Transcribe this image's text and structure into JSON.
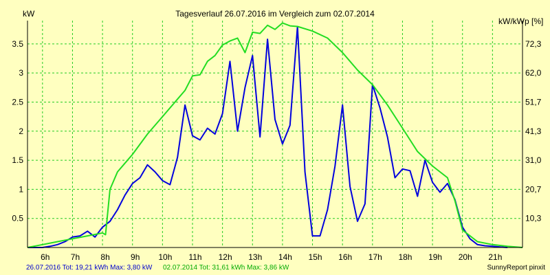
{
  "chart_data": {
    "type": "line",
    "title": "Tagesverlauf 26.07.2016 im Vergleich zum 02.07.2014",
    "left_axis_label": "kW",
    "right_axis_label": "kW/kWp [%]",
    "x_ticks": [
      "6h",
      "7h",
      "8h",
      "9h",
      "10h",
      "11h",
      "12h",
      "13h",
      "14h",
      "15h",
      "16h",
      "17h",
      "18h",
      "19h",
      "20h",
      "21h"
    ],
    "xlim": [
      5.5,
      22.0
    ],
    "ylim": [
      0,
      3.9
    ],
    "y_ticks": [
      0.5,
      1,
      1.5,
      2,
      2.5,
      3,
      3.5
    ],
    "y_tick_labels": [
      "0.5",
      "1",
      "1.5",
      "2",
      "2.5",
      "3",
      "3.5"
    ],
    "right_ticks": [
      0.5,
      1.0,
      1.5,
      2.0,
      2.5,
      3.0,
      3.5
    ],
    "right_tick_labels": [
      "10,3",
      "20,7",
      "31,0",
      "41,3",
      "51,7",
      "62,0",
      "72,3"
    ],
    "grid": true,
    "series": [
      {
        "name": "26.07.2016",
        "color": "#0000dd",
        "x": [
          5.5,
          5.75,
          6.0,
          6.25,
          6.5,
          6.75,
          7.0,
          7.25,
          7.5,
          7.75,
          8.0,
          8.25,
          8.5,
          8.75,
          9.0,
          9.25,
          9.5,
          9.75,
          10.0,
          10.25,
          10.5,
          10.75,
          11.0,
          11.25,
          11.5,
          11.75,
          12.0,
          12.25,
          12.5,
          12.75,
          13.0,
          13.25,
          13.5,
          13.75,
          14.0,
          14.25,
          14.5,
          14.75,
          15.0,
          15.25,
          15.5,
          15.75,
          16.0,
          16.25,
          16.5,
          16.75,
          17.0,
          17.25,
          17.5,
          17.75,
          18.0,
          18.25,
          18.5,
          18.75,
          19.0,
          19.25,
          19.5,
          19.75,
          20.0,
          20.25,
          20.5,
          20.75,
          21.0,
          21.25,
          21.5
        ],
        "values": [
          0,
          0,
          0,
          0.02,
          0.05,
          0.1,
          0.18,
          0.2,
          0.28,
          0.18,
          0.35,
          0.45,
          0.65,
          0.9,
          1.1,
          1.2,
          1.42,
          1.3,
          1.15,
          1.08,
          1.55,
          2.45,
          1.92,
          1.85,
          2.05,
          1.95,
          2.3,
          3.2,
          2.0,
          2.75,
          3.3,
          1.9,
          3.58,
          2.2,
          1.78,
          2.1,
          3.8,
          1.3,
          0.2,
          0.2,
          0.65,
          1.4,
          2.45,
          1.05,
          0.45,
          0.75,
          2.8,
          2.4,
          1.9,
          1.2,
          1.35,
          1.32,
          0.88,
          1.5,
          1.12,
          0.95,
          1.1,
          0.82,
          0.35,
          0.15,
          0.05,
          0.03,
          0.02,
          0.01,
          0
        ]
      },
      {
        "name": "02.07.2014",
        "color": "#22dd22",
        "x": [
          5.5,
          6.0,
          6.5,
          7.0,
          7.5,
          8.0,
          8.1,
          8.25,
          8.5,
          8.75,
          9.0,
          9.5,
          10.0,
          10.5,
          10.75,
          11.0,
          11.25,
          11.5,
          11.75,
          12.0,
          12.25,
          12.5,
          12.75,
          13.0,
          13.25,
          13.5,
          13.75,
          14.0,
          14.25,
          14.5,
          15.0,
          15.5,
          16.0,
          16.5,
          17.0,
          17.5,
          18.0,
          18.5,
          19.0,
          19.25,
          19.5,
          19.75,
          20.0,
          20.5,
          21.0,
          21.5,
          22.0
        ],
        "values": [
          0,
          0.05,
          0.1,
          0.15,
          0.2,
          0.25,
          0.22,
          1.0,
          1.3,
          1.45,
          1.6,
          1.95,
          2.25,
          2.55,
          2.7,
          2.95,
          2.97,
          3.2,
          3.3,
          3.48,
          3.55,
          3.6,
          3.35,
          3.7,
          3.68,
          3.82,
          3.75,
          3.86,
          3.81,
          3.8,
          3.72,
          3.6,
          3.35,
          3.05,
          2.8,
          2.45,
          2.05,
          1.65,
          1.4,
          1.3,
          1.2,
          0.8,
          0.3,
          0.1,
          0.05,
          0.02,
          0
        ]
      }
    ]
  },
  "footer": {
    "legend_2016": "26.07.2016 Tot: 19,21 kWh Max: 3,80 kW",
    "legend_2014": "02.07.2014 Tot: 31,61 kWh Max: 3,86 kW",
    "credit": "SunnyReport pinxit"
  },
  "colors": {
    "background": "#ffffc0",
    "grid": "#22cc22",
    "series_2016": "#0000dd",
    "series_2014": "#22dd22",
    "legend_2016_text": "#0000cc",
    "legend_2014_text": "#00aa00"
  }
}
